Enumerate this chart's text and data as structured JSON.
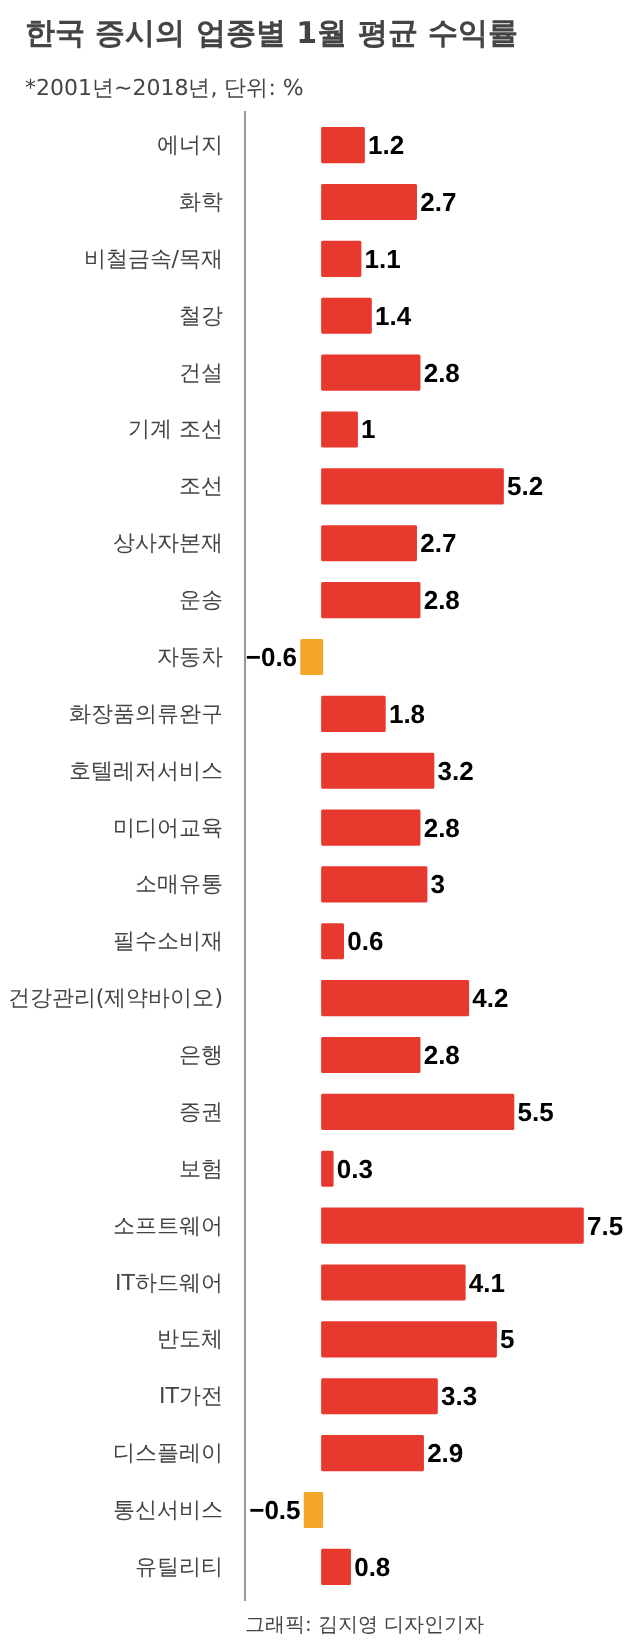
{
  "chart_data": {
    "type": "bar",
    "orientation": "horizontal",
    "title": "한국 증시의 업종별 1월 평균 수익률",
    "subtitle": "*2001년~2018년, 단위: %",
    "categories": [
      "에너지",
      "화학",
      "비철금속/목재",
      "철강",
      "건설",
      "기계 조선",
      "조선",
      "상사자본재",
      "운송",
      "자동차",
      "화장품의류완구",
      "호텔레저서비스",
      "미디어교육",
      "소매유통",
      "필수소비재",
      "건강관리(제약바이오)",
      "은행",
      "증권",
      "보험",
      "소프트웨어",
      "IT하드웨어",
      "반도체",
      "IT가전",
      "디스플레이",
      "통신서비스",
      "유틸리티"
    ],
    "values": [
      1.2,
      2.7,
      1.1,
      1.4,
      2.8,
      1,
      5.2,
      2.7,
      2.8,
      -0.6,
      1.8,
      3.2,
      2.8,
      3,
      0.6,
      4.2,
      2.8,
      5.5,
      0.3,
      7.5,
      4.1,
      5,
      3.3,
      2.9,
      -0.5,
      0.8
    ],
    "colors": [
      "#e8392e",
      "#e8392e",
      "#e8392e",
      "#e8392e",
      "#e8392e",
      "#e8392e",
      "#e8392e",
      "#e8392e",
      "#e8392e",
      "#f4a62a",
      "#e8392e",
      "#e8392e",
      "#e8392e",
      "#e8392e",
      "#e8392e",
      "#e8392e",
      "#e8392e",
      "#e8392e",
      "#e8392e",
      "#e8392e",
      "#e8392e",
      "#e8392e",
      "#e8392e",
      "#e8392e",
      "#f4a62a",
      "#e8392e"
    ],
    "data_labels": true,
    "grid": false,
    "annotations": [
      "그래픽: 김지영 디자인기자"
    ]
  }
}
